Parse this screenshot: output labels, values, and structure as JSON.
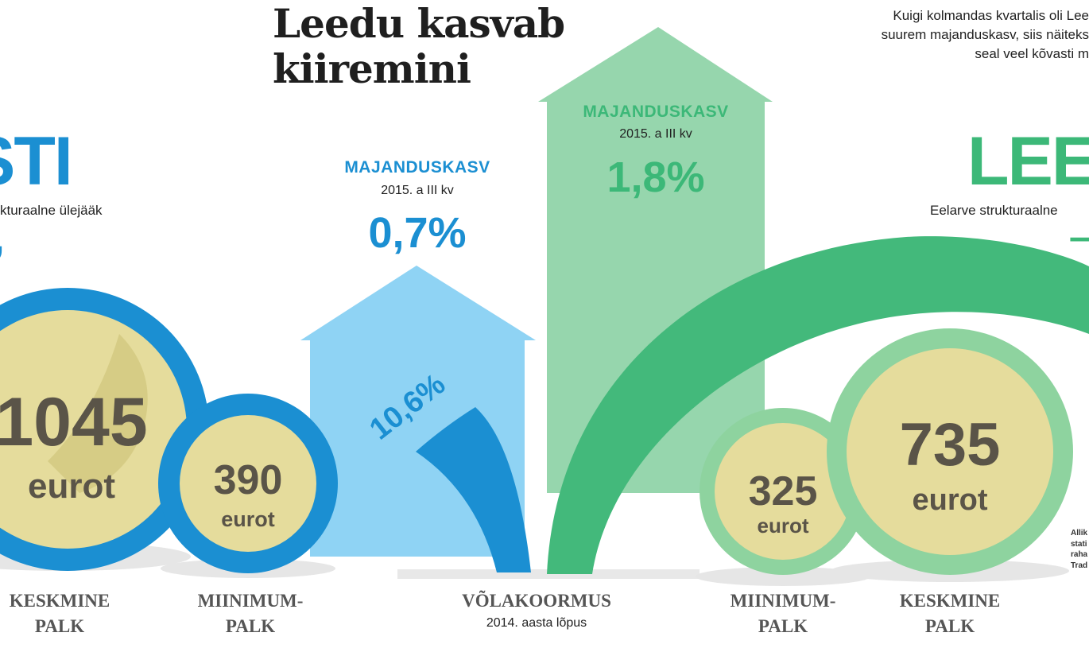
{
  "title": "Leedu kasvab\nkiiremini",
  "intro": "Kuigi kolmandas kvartalis oli Lee\nsuurem majanduskasv, siis näiteks\nseal veel kõvasti m",
  "estonia": {
    "name": "STI",
    "balance_label": "kturaalne ülejääk",
    "balance_value": ",",
    "avg_wage": {
      "value": "1045",
      "unit": "eurot",
      "label": "KESKMINE\nPALK"
    },
    "min_wage": {
      "value": "390",
      "unit": "eurot",
      "label": "MIINIMUM-\nPALK"
    },
    "growth": {
      "label": "MAJANDUSKASV",
      "period": "2015. a III kv",
      "value": "0,7%"
    },
    "debt": {
      "value": "10,6%"
    },
    "color": "#1b8fd2"
  },
  "lithuania": {
    "name": "LEE",
    "balance_label": "Eelarve strukturaalne",
    "balance_value": "–",
    "avg_wage": {
      "value": "735",
      "unit": "eurot",
      "label": "KESKMINE\nPALK"
    },
    "min_wage": {
      "value": "325",
      "unit": "eurot",
      "label": "MIINIMUM-\nPALK"
    },
    "growth": {
      "label": "MAJANDUSKASV",
      "period": "2015. a III kv",
      "value": "1,8%"
    },
    "color": "#3cb878"
  },
  "debt": {
    "label": "VÕLAKOORMUS",
    "period": "2014. aasta lõpus"
  },
  "source": "Allik\nstati\nraha\nTrad"
}
